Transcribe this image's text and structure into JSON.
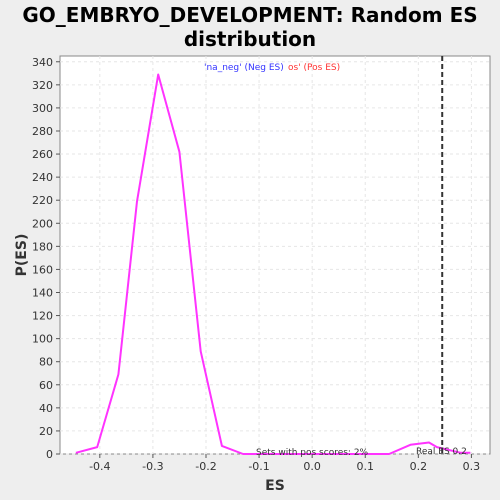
{
  "chart_data": {
    "type": "line",
    "title_line1": "GO_EMBRYO_DEVELOPMENT: Random ES",
    "title_line2": "distribution",
    "xlabel": "ES",
    "ylabel": "P(ES)",
    "xlim": [
      -0.475,
      0.335
    ],
    "ylim": [
      0,
      345
    ],
    "x_ticks": [
      -0.4,
      -0.3,
      -0.2,
      -0.1,
      0.0,
      0.1,
      0.2,
      0.3
    ],
    "x_tick_labels": [
      "-0.4",
      "-0.3",
      "-0.2",
      "-0.1",
      "0.0",
      "0.1",
      "0.2",
      "0.3"
    ],
    "y_ticks": [
      0,
      20,
      40,
      60,
      80,
      100,
      120,
      140,
      160,
      180,
      200,
      220,
      240,
      260,
      280,
      300,
      320,
      340
    ],
    "y_tick_labels": [
      "0",
      "20",
      "40",
      "60",
      "80",
      "100",
      "120",
      "140",
      "160",
      "180",
      "200",
      "220",
      "240",
      "260",
      "280",
      "300",
      "320",
      "340"
    ],
    "grid": true,
    "series": [
      {
        "color": "#ff33ff",
        "x": [
          -0.445,
          -0.405,
          -0.365,
          -0.33,
          -0.29,
          -0.25,
          -0.21,
          -0.17,
          -0.13,
          -0.09,
          -0.05,
          -0.01,
          0.03,
          0.07,
          0.11,
          0.145,
          0.185,
          0.22,
          0.235,
          0.28,
          0.298
        ],
        "y": [
          1,
          6,
          69,
          219,
          329,
          262,
          89,
          7,
          0,
          0,
          0,
          0,
          0,
          0,
          0,
          0,
          8,
          10,
          6,
          1,
          1
        ]
      }
    ],
    "real_es": 0.245,
    "real_es_color": "#333333",
    "legend_neg": "'na_neg' (Neg ES)",
    "legend_neg_color": "#3333ff",
    "legend_pos": "os' (Pos ES)",
    "legend_pos_color": "#ff3333",
    "annotation_sets": "Sets with pos scores: 2%",
    "annotation_real_es": "Real ES 0.2",
    "colors": {
      "background": "#eeeeee",
      "plot_background": "#ffffff",
      "grid": "#e6e6e6",
      "axis": "#555555"
    }
  }
}
